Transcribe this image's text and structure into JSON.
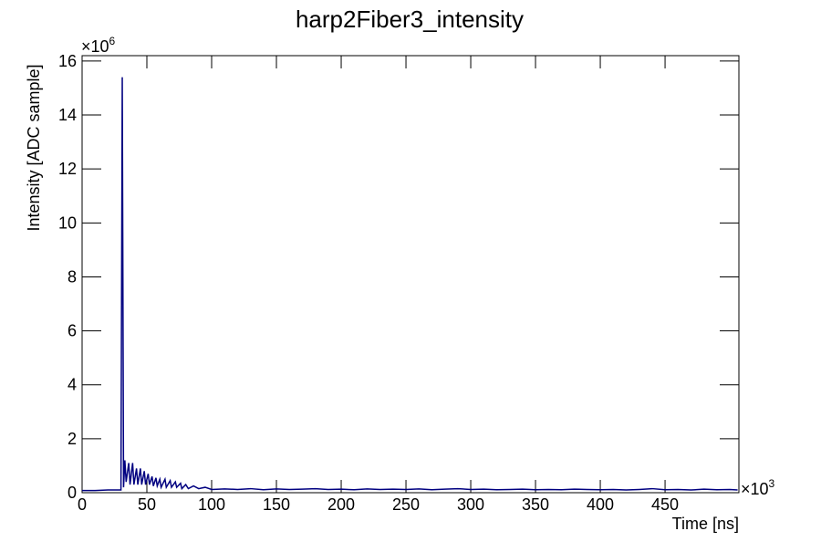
{
  "chart_data": {
    "type": "line",
    "title": "harp2Fiber3_intensity",
    "x_label": "Time [ns]",
    "y_label": "Intensity [ADC sample]",
    "x_multiplier": {
      "base": "×10",
      "power": "3"
    },
    "y_multiplier": {
      "base": "×10",
      "power": "6"
    },
    "x": [
      0,
      10,
      20,
      30,
      31,
      32,
      33,
      34,
      36,
      37,
      39,
      40,
      42,
      43,
      45,
      46,
      48,
      49,
      51,
      52,
      54,
      55,
      57,
      58,
      60,
      61,
      64,
      65,
      68,
      69,
      72,
      73,
      76,
      77,
      80,
      82,
      86,
      90,
      95,
      100,
      110,
      120,
      130,
      140,
      150,
      160,
      170,
      180,
      190,
      200,
      210,
      220,
      230,
      240,
      250,
      260,
      270,
      280,
      290,
      300,
      310,
      320,
      330,
      340,
      350,
      360,
      370,
      380,
      390,
      400,
      410,
      420,
      430,
      440,
      450,
      460,
      470,
      480,
      490,
      500,
      506
    ],
    "series": [
      {
        "name": "harp2Fiber3_intensity",
        "color": "#000080",
        "values": [
          0.08,
          0.08,
          0.1,
          0.1,
          15.4,
          0.2,
          1.2,
          0.4,
          1.1,
          0.3,
          1.1,
          0.3,
          0.9,
          0.3,
          0.9,
          0.3,
          0.8,
          0.3,
          0.7,
          0.3,
          0.6,
          0.25,
          0.55,
          0.25,
          0.5,
          0.2,
          0.5,
          0.2,
          0.45,
          0.2,
          0.4,
          0.2,
          0.35,
          0.15,
          0.3,
          0.15,
          0.25,
          0.15,
          0.2,
          0.12,
          0.14,
          0.12,
          0.15,
          0.11,
          0.14,
          0.12,
          0.13,
          0.15,
          0.12,
          0.13,
          0.11,
          0.14,
          0.12,
          0.13,
          0.12,
          0.14,
          0.11,
          0.13,
          0.15,
          0.12,
          0.13,
          0.11,
          0.12,
          0.13,
          0.11,
          0.12,
          0.11,
          0.13,
          0.12,
          0.11,
          0.12,
          0.1,
          0.12,
          0.15,
          0.11,
          0.12,
          0.1,
          0.13,
          0.11,
          0.12,
          0.1
        ]
      }
    ],
    "xlim": [
      0,
      507
    ],
    "xticks": [
      0,
      50,
      100,
      150,
      200,
      250,
      300,
      350,
      400,
      450
    ],
    "ylim": [
      0,
      16.2
    ],
    "yticks": [
      0,
      2,
      4,
      6,
      8,
      10,
      12,
      14,
      16
    ]
  }
}
